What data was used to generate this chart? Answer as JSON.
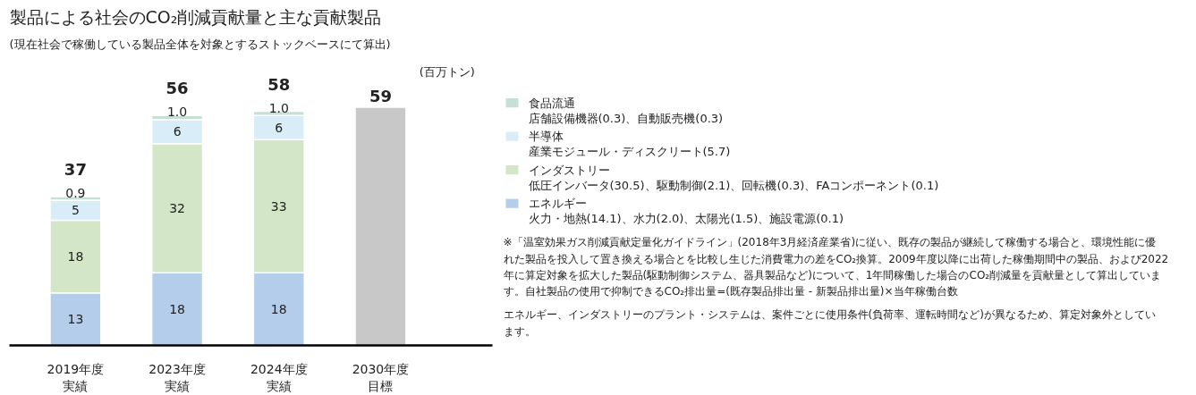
{
  "chart_data": {
    "type": "bar",
    "stacked": true,
    "title": "製品による社会のCO₂削減貢献量と主な貢献製品",
    "subtitle": "(現在社会で稼働している製品全体を対象とするストックベースにて算出)",
    "ylabel": "(百万トン)",
    "categories": [
      "2019年度実績",
      "2023年度実績",
      "2024年度実績",
      "2030年度目標"
    ],
    "series": [
      {
        "name": "エネルギー",
        "color": "#b4cdea",
        "values": [
          13,
          18,
          18,
          null
        ],
        "value_labels": [
          "13",
          "18",
          "18",
          null
        ]
      },
      {
        "name": "インダストリー",
        "color": "#d3e6c8",
        "values": [
          18,
          32,
          33,
          null
        ],
        "value_labels": [
          "18",
          "32",
          "33",
          null
        ]
      },
      {
        "name": "半導体",
        "color": "#d9edf8",
        "values": [
          5,
          6,
          6,
          null
        ],
        "value_labels": [
          "5",
          "6",
          "6",
          null
        ]
      },
      {
        "name": "食品流通",
        "color": "#c6e0d6",
        "values": [
          0.9,
          1.0,
          1.0,
          null
        ],
        "value_labels": [
          "0.9",
          "1.0",
          "1.0",
          null
        ]
      },
      {
        "color": "#c8c8c8",
        "values": [
          null,
          null,
          null,
          59
        ]
      }
    ],
    "totals": [
      "37",
      "56",
      "58",
      "59"
    ],
    "legend": "right",
    "grid": false,
    "annotations": [
      "店舗設備機器(0.3)、自動販売機(0.3)",
      "産業モジュール・ディスクリート(5.7)",
      "低圧インバータ(30.5)、駆動制御(2.1)、回転機(0.3)、FAコンポーネント(0.1)",
      "火力・地熱(14.1)、水力(2.0)、太陽光(1.5)、施設電源(0.1)",
      "※「温室効果ガス削減貢献定量化ガイドライン」(2018年3月経済産業省)に従い、既存の製品が継続して稼働する場合と、環境性能に優れた製品を投入して置き換える場合とを比較し生じた消費電力の差をCO₂換算。2009年度以降に出荷した稼働期間中の製品、および2022年に算定対象を拡大した製品(駆動制御システム、器具製品など)について、1年間稼働した場合のCO₂削減量を貢献量として算出しています。自社製品の使用で抑制できるCO₂排出量=(既存製品排出量 - 新製品排出量)×当年稼働台数",
      "エネルギー、インダストリーのプラント・システムは、案件ごとに使用条件(負荷率、運転時間など)が異なるため、算定対象外としています。"
    ]
  }
}
